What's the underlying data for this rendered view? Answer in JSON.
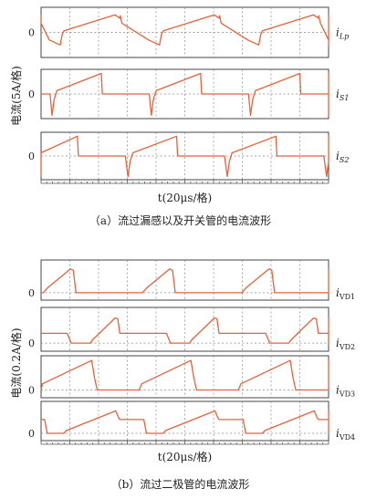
{
  "chart_data": [
    {
      "type": "line",
      "panel": "a",
      "caption": "（a）流过漏感以及开关管的电流波形",
      "ylabel": "电流(5A/格)",
      "xlabel": "t(20μs/格)",
      "zero_label": "0",
      "series": [
        {
          "name": "i_Lp",
          "label": "i",
          "sub": "Lp",
          "x_start": 0.0,
          "period": 14.5,
          "pattern": [
            [
              0,
              0.85
            ],
            [
              0.08,
              1.0
            ],
            [
              0.3,
              0.55
            ],
            [
              4.2,
              -0.45
            ],
            [
              5.8,
              -0.75
            ],
            [
              6.1,
              -0.1
            ],
            [
              6.35,
              0.1
            ],
            [
              13.8,
              1.05
            ],
            [
              14.5,
              0.85
            ]
          ],
          "ylim": [
            -1.5,
            1.5
          ]
        },
        {
          "name": "i_S1",
          "label": "i",
          "sub": "S1",
          "x_start": 0.0,
          "period": 14.5,
          "pattern": [
            [
              0,
              0
            ],
            [
              2.6,
              0
            ],
            [
              3.6,
              0
            ],
            [
              4.3,
              0
            ],
            [
              4.6,
              -1.3
            ],
            [
              4.9,
              -0.35
            ],
            [
              5.3,
              0.2
            ],
            [
              11.8,
              1.25
            ],
            [
              11.95,
              0
            ],
            [
              14.5,
              0
            ]
          ],
          "ylim": [
            -1.5,
            1.5
          ]
        },
        {
          "name": "i_S2",
          "label": "i",
          "sub": "S2",
          "x_start": 0.0,
          "period": 14.5,
          "pattern": [
            [
              0,
              0
            ],
            [
              0.8,
              0
            ],
            [
              1.2,
              -1.3
            ],
            [
              1.5,
              -0.35
            ],
            [
              1.9,
              0.2
            ],
            [
              8.3,
              1.25
            ],
            [
              8.45,
              0
            ],
            [
              11.0,
              0
            ],
            [
              14.5,
              0
            ]
          ],
          "ylim": [
            -1.5,
            1.5
          ]
        }
      ]
    },
    {
      "type": "line",
      "panel": "b",
      "caption": "（b）流过二极管的电流波形",
      "ylabel": "电流(0.2A/格)",
      "xlabel": "t(20μs/格)",
      "zero_label": "0",
      "series": [
        {
          "name": "i_VD1",
          "label": "i",
          "sub": "VD1",
          "period": 14.5,
          "pattern": [
            [
              0,
              0
            ],
            [
              3.3,
              0
            ],
            [
              4.0,
              0.35
            ],
            [
              7.3,
              1.6
            ],
            [
              7.7,
              1.5
            ],
            [
              8.1,
              0
            ],
            [
              14.5,
              0
            ]
          ],
          "ylim": [
            -0.5,
            2.2
          ]
        },
        {
          "name": "i_VD2",
          "label": "i",
          "sub": "VD2",
          "period": 14.5,
          "pattern": [
            [
              0,
              0.6
            ],
            [
              6.8,
              0.6
            ],
            [
              7.4,
              0
            ],
            [
              10.2,
              0
            ],
            [
              10.5,
              0.2
            ],
            [
              13.8,
              1.55
            ],
            [
              14.2,
              1.5
            ],
            [
              14.5,
              0.6
            ]
          ],
          "ylim": [
            -0.5,
            2.2
          ]
        },
        {
          "name": "i_VD3",
          "label": "i",
          "sub": "VD3",
          "period": 14.5,
          "pattern": [
            [
              0,
              0
            ],
            [
              2.8,
              0
            ],
            [
              3.2,
              0.4
            ],
            [
              10.4,
              1.9
            ],
            [
              10.8,
              0.8
            ],
            [
              11.2,
              0
            ],
            [
              14.5,
              0
            ]
          ],
          "ylim": [
            -0.5,
            2.2
          ]
        },
        {
          "name": "i_VD4",
          "label": "i",
          "sub": "VD4",
          "period": 14.5,
          "pattern": [
            [
              0,
              0.95
            ],
            [
              3.5,
              0.95
            ],
            [
              3.9,
              0
            ],
            [
              6.3,
              0
            ],
            [
              6.7,
              0.2
            ],
            [
              13.9,
              1.55
            ],
            [
              14.3,
              1.1
            ],
            [
              14.5,
              0.95
            ]
          ],
          "ylim": [
            -0.5,
            2.2
          ]
        }
      ]
    }
  ]
}
